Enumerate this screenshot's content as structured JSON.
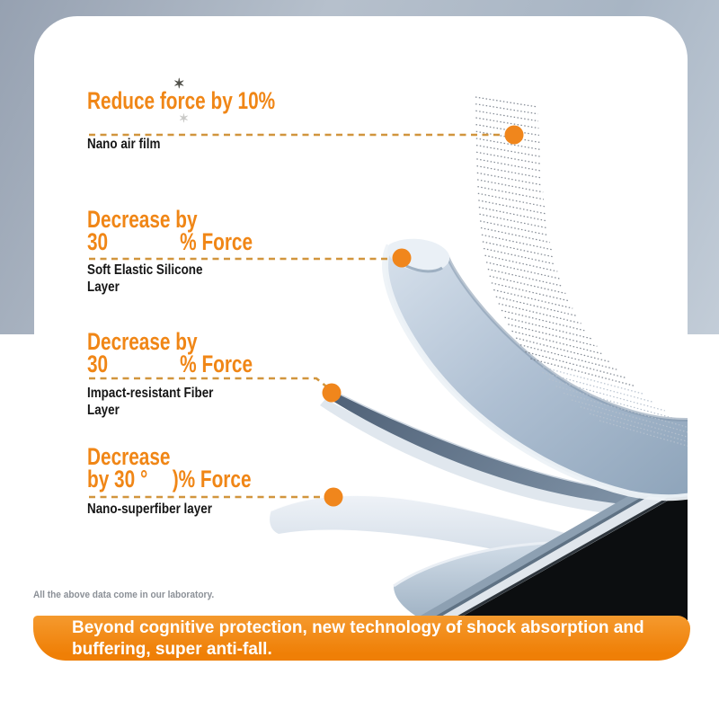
{
  "sections": [
    {
      "title1": "Reduce force by 10%",
      "title2a": "",
      "title2b": "",
      "label1": "Nano air film",
      "label2": ""
    },
    {
      "title1": "Decrease by",
      "title2a": "30",
      "title2b": "% Force",
      "label1": "Soft Elastic Silicone",
      "label2": "Layer"
    },
    {
      "title1": "Decrease by",
      "title2a": "30",
      "title2b": "% Force",
      "label1": "Impact-resistant Fiber",
      "label2": "Layer"
    },
    {
      "title1": "Decrease",
      "title2a": "by 30 °",
      "title2b": ")% Force",
      "label1": "Nano-superfiber layer",
      "label2": ""
    }
  ],
  "star_mark": "✶",
  "footnote": "All the above data come in our laboratory.",
  "banner": {
    "line1": "Beyond cognitive protection, new technology of shock absorption and",
    "line2": "buffering, super anti-fall."
  },
  "colors": {
    "accent_orange": "#f08616",
    "banner_orange": "#ef7f06",
    "banner_orange_light": "#f59a2e",
    "dot_orange": "#f0861c",
    "leader_tan": "#cf8f33",
    "label_black": "#161616",
    "footnote_gray": "#8b9097",
    "bg_gray_blue": "#a4afbf"
  }
}
